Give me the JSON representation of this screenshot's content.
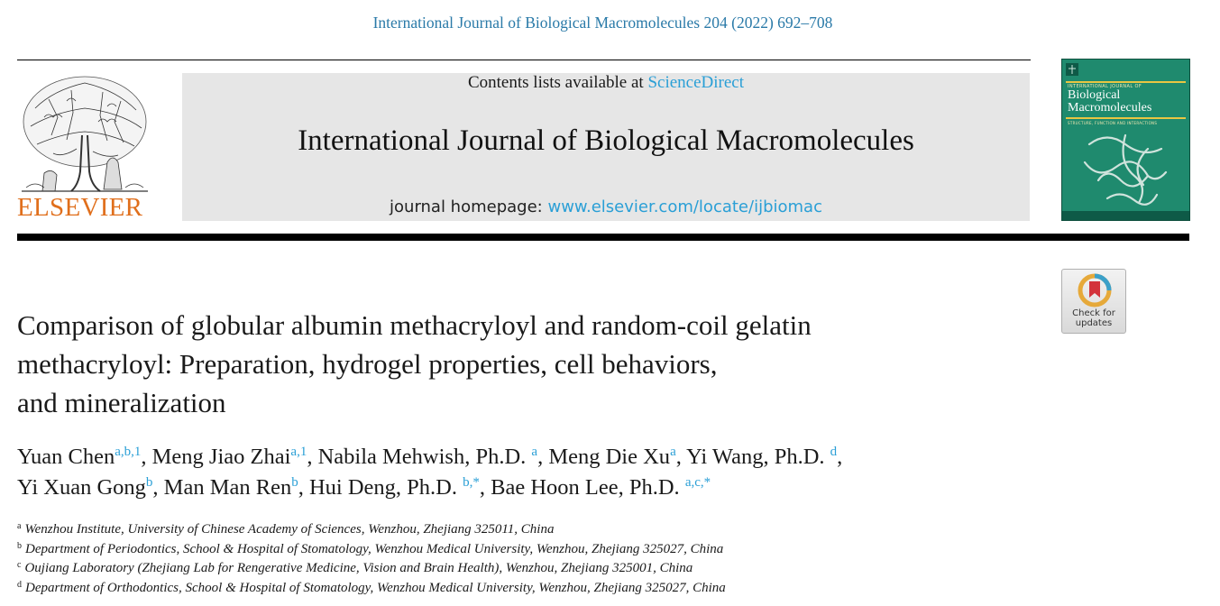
{
  "header": {
    "citation": "International Journal of Biological Macromolecules 204 (2022) 692–708"
  },
  "masthead": {
    "publisher_wordmark": "ELSEVIER",
    "contents_prefix": "Contents lists available at ",
    "contents_link": "ScienceDirect",
    "journal_name": "International Journal of Biological Macromolecules",
    "homepage_prefix": "journal homepage: ",
    "homepage_link": "www.elsevier.com/locate/ijbiomac"
  },
  "cover": {
    "small_label": "INTERNATIONAL JOURNAL OF",
    "title_line1": "Biological",
    "title_line2": "Macromolecules",
    "subtitle": "STRUCTURE, FUNCTION AND INTERACTIONS"
  },
  "badge": {
    "line1": "Check for",
    "line2": "updates"
  },
  "article": {
    "title_line1": "Comparison of globular albumin methacryloyl and random-coil gelatin",
    "title_line2": "methacryloyl: Preparation, hydrogel properties, cell behaviors,",
    "title_line3": "and mineralization"
  },
  "authors": [
    {
      "name": "Yuan Chen",
      "sup": "a,b,1",
      "sep": ", "
    },
    {
      "name": "Meng Jiao Zhai",
      "sup": "a,1",
      "sep": ", "
    },
    {
      "name": "Nabila Mehwish, Ph.D. ",
      "sup": "a",
      "sep": ", "
    },
    {
      "name": "Meng Die Xu",
      "sup": "a",
      "sep": ", "
    },
    {
      "name": "Yi Wang, Ph.D. ",
      "sup": "d",
      "sep": ","
    },
    {
      "name": "Yi Xuan Gong",
      "sup": "b",
      "sep": ", "
    },
    {
      "name": "Man Man Ren",
      "sup": "b",
      "sep": ", "
    },
    {
      "name": "Hui Deng, Ph.D. ",
      "sup": "b,*",
      "sep": ", "
    },
    {
      "name": "Bae Hoon Lee, Ph.D. ",
      "sup": "a,c,*",
      "sep": ""
    }
  ],
  "affiliations": [
    {
      "key": "a",
      "text": "Wenzhou Institute, University of Chinese Academy of Sciences, Wenzhou, Zhejiang 325011, China"
    },
    {
      "key": "b",
      "text": "Department of Periodontics, School & Hospital of Stomatology, Wenzhou Medical University, Wenzhou, Zhejiang 325027, China"
    },
    {
      "key": "c",
      "text": "Oujiang Laboratory (Zhejiang Lab for Rengerative Medicine, Vision and Brain Health), Wenzhou, Zhejiang 325001, China"
    },
    {
      "key": "d",
      "text": "Department of Orthodontics, School & Hospital of Stomatology, Wenzhou Medical University, Wenzhou, Zhejiang 325027, China"
    }
  ],
  "colors": {
    "link": "#2a9fd6",
    "citation": "#2a7aa8",
    "elsevier_orange": "#e06f1c",
    "cover_green": "#1f8a6e",
    "masthead_gray": "#e6e6e6"
  }
}
